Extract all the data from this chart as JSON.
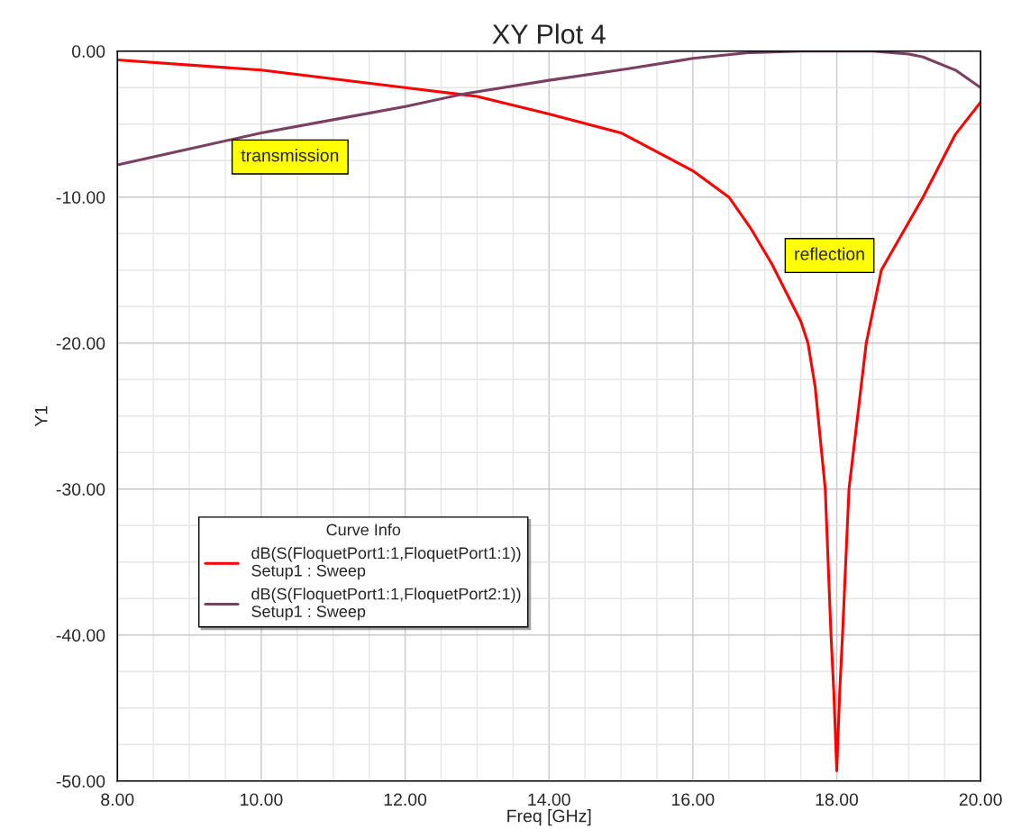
{
  "chart_data": {
    "type": "line",
    "title": "XY Plot 4",
    "xlabel": "Freq [GHz]",
    "ylabel": "Y1",
    "legend_title": "Curve Info",
    "xlim": [
      8,
      20
    ],
    "ylim": [
      -50,
      0
    ],
    "xticks": [
      {
        "value": 8,
        "label": "8.00"
      },
      {
        "value": 10,
        "label": "10.00"
      },
      {
        "value": 12,
        "label": "12.00"
      },
      {
        "value": 14,
        "label": "14.00"
      },
      {
        "value": 16,
        "label": "16.00"
      },
      {
        "value": 18,
        "label": "18.00"
      },
      {
        "value": 20,
        "label": "20.00"
      }
    ],
    "yticks": [
      {
        "value": -50,
        "label": "-50.00"
      },
      {
        "value": -40,
        "label": "-40.00"
      },
      {
        "value": -30,
        "label": "-30.00"
      },
      {
        "value": -20,
        "label": "-20.00"
      },
      {
        "value": -10,
        "label": "-10.00"
      },
      {
        "value": 0,
        "label": "0.00"
      }
    ],
    "grid": true,
    "legend": "bottom left",
    "annotations": [
      "transmission",
      "reflection"
    ],
    "series": [
      {
        "name": "dB(S(FloquetPort1:1,FloquetPort1:1))\nSetup1 : Sweep",
        "color": "#ff0000",
        "x": [
          8,
          10,
          12,
          13,
          14,
          15,
          16,
          16.5,
          16.8,
          17.1,
          17.5,
          17.6,
          17.7,
          17.84,
          17.92,
          17.96,
          18.0,
          18.04,
          18.08,
          18.17,
          18.41,
          18.62,
          19.2,
          19.65,
          20
        ],
        "values": [
          -0.6,
          -1.3,
          -2.5,
          -3.1,
          -4.3,
          -5.6,
          -8.2,
          -10,
          -12.1,
          -14.6,
          -18.5,
          -20,
          -23,
          -30,
          -40,
          -44,
          -49.3,
          -44,
          -40,
          -30,
          -20,
          -15,
          -10,
          -5.7,
          -3.5
        ]
      },
      {
        "name": "dB(S(FloquetPort1:1,FloquetPort2:1))\nSetup1 : Sweep",
        "color": "#7b3f62",
        "x": [
          8,
          9,
          10,
          11,
          12,
          12.85,
          14,
          15.1,
          16,
          16.8,
          17.5,
          18,
          18.5,
          19,
          19.2,
          19.65,
          20
        ],
        "values": [
          -7.8,
          -6.7,
          -5.6,
          -4.7,
          -3.8,
          -2.9,
          -2.0,
          -1.2,
          -0.5,
          -0.1,
          0,
          0,
          0,
          -0.2,
          -0.4,
          -1.3,
          -2.5
        ]
      }
    ]
  }
}
